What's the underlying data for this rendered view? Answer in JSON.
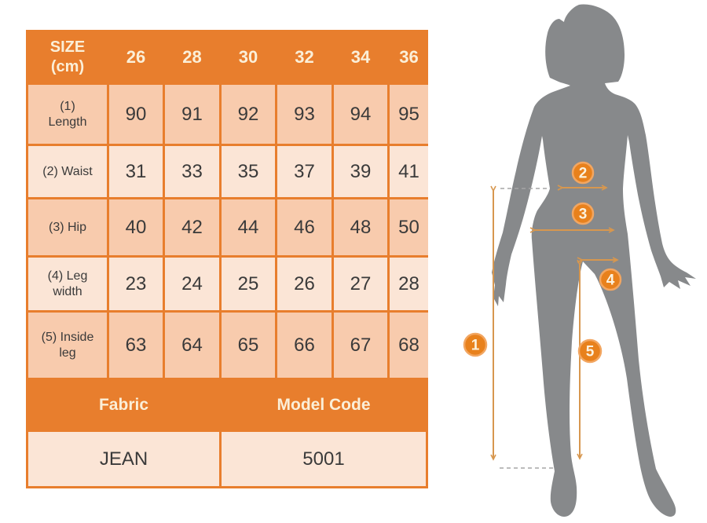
{
  "chart_data": {
    "type": "table",
    "title": "SIZE (cm)",
    "header": {
      "size_label": "SIZE\n(cm)",
      "sizes": [
        "26",
        "28",
        "30",
        "32",
        "34",
        "36"
      ]
    },
    "rows": [
      {
        "label": "(1)\nLength",
        "values": [
          90,
          91,
          92,
          93,
          94,
          95
        ]
      },
      {
        "label": "(2) Waist",
        "values": [
          31,
          33,
          35,
          37,
          39,
          41
        ]
      },
      {
        "label": "(3) Hip",
        "values": [
          40,
          42,
          44,
          46,
          48,
          50
        ]
      },
      {
        "label": "(4) Leg\nwidth",
        "values": [
          23,
          24,
          25,
          26,
          27,
          28
        ]
      },
      {
        "label": "(5) Inside\nleg",
        "values": [
          63,
          64,
          65,
          66,
          67,
          68
        ]
      }
    ],
    "footer": {
      "fabric_label": "Fabric",
      "model_code_label": "Model Code",
      "fabric_value": "JEAN",
      "model_code_value": "5001"
    },
    "figure_markers": [
      {
        "number": "1"
      },
      {
        "number": "2"
      },
      {
        "number": "3"
      },
      {
        "number": "4"
      },
      {
        "number": "5"
      }
    ]
  },
  "colors": {
    "header_orange": "#E87E2D",
    "row_band_dark": "#F8CBAD",
    "row_band_light": "#FBE5D6",
    "header_text": "#FBEFD8",
    "value_text": "#3A3A3A",
    "silhouette_gray": "#87898B",
    "marker_orange": "#E8811C",
    "marker_ring": "#F2A661",
    "arrow_orange": "#D7974F",
    "dash_gray": "#A6A6A6"
  }
}
